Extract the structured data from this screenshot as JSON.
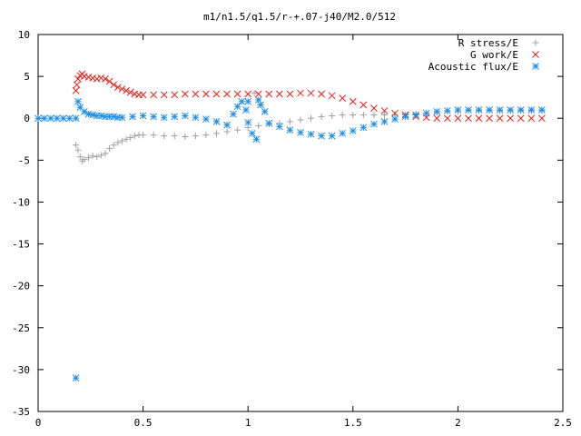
{
  "chart_data": {
    "type": "scatter",
    "title": "m1/n1.5/q1.5/r-+.07-j40/M2.0/512",
    "xlabel": "",
    "ylabel": "",
    "xlim": [
      0,
      2.5
    ],
    "ylim": [
      -35,
      10
    ],
    "x_ticks": [
      0,
      0.5,
      1,
      1.5,
      2,
      2.5
    ],
    "x_tick_labels": [
      "0",
      "0.5",
      "1",
      "1.5",
      "2",
      "2.5"
    ],
    "y_ticks": [
      10,
      5,
      0,
      -5,
      -10,
      -15,
      -20,
      -25,
      -30,
      -35
    ],
    "y_tick_labels": [
      "10",
      "5",
      "0",
      "-5",
      "-10",
      "-15",
      "-20",
      "-25",
      "-30",
      "-35"
    ],
    "grid": false,
    "legend_position": "top-right",
    "series": [
      {
        "name": "R stress/E",
        "marker": "plus",
        "color": "#a0a0a0",
        "points": [
          [
            0.18,
            -3.2
          ],
          [
            0.19,
            -3.8
          ],
          [
            0.2,
            -4.6
          ],
          [
            0.21,
            -5.1
          ],
          [
            0.22,
            -4.9
          ],
          [
            0.24,
            -4.7
          ],
          [
            0.26,
            -4.5
          ],
          [
            0.28,
            -4.6
          ],
          [
            0.3,
            -4.4
          ],
          [
            0.32,
            -4.2
          ],
          [
            0.34,
            -3.6
          ],
          [
            0.36,
            -3.2
          ],
          [
            0.38,
            -2.9
          ],
          [
            0.4,
            -2.7
          ],
          [
            0.42,
            -2.5
          ],
          [
            0.44,
            -2.3
          ],
          [
            0.46,
            -2.1
          ],
          [
            0.48,
            -2.0
          ],
          [
            0.5,
            -2.0
          ],
          [
            0.55,
            -2.0
          ],
          [
            0.6,
            -2.1
          ],
          [
            0.65,
            -2.1
          ],
          [
            0.7,
            -2.2
          ],
          [
            0.75,
            -2.1
          ],
          [
            0.8,
            -2.0
          ],
          [
            0.85,
            -1.8
          ],
          [
            0.9,
            -1.6
          ],
          [
            0.95,
            -1.4
          ],
          [
            1.0,
            -1.1
          ],
          [
            1.03,
            3.0
          ],
          [
            1.05,
            -0.9
          ],
          [
            1.1,
            -0.7
          ],
          [
            1.15,
            -0.6
          ],
          [
            1.2,
            -0.4
          ],
          [
            1.25,
            -0.2
          ],
          [
            1.3,
            0.0
          ],
          [
            1.35,
            0.2
          ],
          [
            1.4,
            0.3
          ],
          [
            1.45,
            0.4
          ],
          [
            1.5,
            0.4
          ],
          [
            1.55,
            0.4
          ],
          [
            1.6,
            0.4
          ],
          [
            1.65,
            0.4
          ],
          [
            1.7,
            0.4
          ],
          [
            1.75,
            0.4
          ],
          [
            1.8,
            0.5
          ],
          [
            1.85,
            0.6
          ],
          [
            1.9,
            0.7
          ],
          [
            1.95,
            0.8
          ],
          [
            2.0,
            0.8
          ],
          [
            2.05,
            0.9
          ],
          [
            2.1,
            0.9
          ],
          [
            2.15,
            0.9
          ],
          [
            2.2,
            0.9
          ],
          [
            2.25,
            0.9
          ],
          [
            2.3,
            0.9
          ],
          [
            2.35,
            0.9
          ],
          [
            2.4,
            0.9
          ]
        ]
      },
      {
        "name": "G work/E",
        "marker": "cross",
        "color": "#e8201a",
        "points": [
          [
            0.18,
            3.3
          ],
          [
            0.185,
            4.0
          ],
          [
            0.19,
            4.7
          ],
          [
            0.2,
            5.1
          ],
          [
            0.21,
            5.3
          ],
          [
            0.22,
            5.0
          ],
          [
            0.24,
            4.9
          ],
          [
            0.26,
            4.8
          ],
          [
            0.28,
            4.7
          ],
          [
            0.3,
            4.8
          ],
          [
            0.32,
            4.7
          ],
          [
            0.34,
            4.4
          ],
          [
            0.36,
            4.0
          ],
          [
            0.38,
            3.7
          ],
          [
            0.4,
            3.5
          ],
          [
            0.42,
            3.3
          ],
          [
            0.44,
            3.1
          ],
          [
            0.46,
            2.9
          ],
          [
            0.48,
            2.8
          ],
          [
            0.5,
            2.8
          ],
          [
            0.55,
            2.8
          ],
          [
            0.6,
            2.8
          ],
          [
            0.65,
            2.8
          ],
          [
            0.7,
            2.9
          ],
          [
            0.75,
            2.9
          ],
          [
            0.8,
            2.9
          ],
          [
            0.85,
            2.9
          ],
          [
            0.9,
            2.9
          ],
          [
            0.95,
            2.9
          ],
          [
            1.0,
            2.9
          ],
          [
            1.05,
            2.9
          ],
          [
            1.1,
            2.9
          ],
          [
            1.15,
            2.9
          ],
          [
            1.2,
            2.9
          ],
          [
            1.25,
            3.0
          ],
          [
            1.3,
            3.0
          ],
          [
            1.35,
            2.9
          ],
          [
            1.4,
            2.7
          ],
          [
            1.45,
            2.4
          ],
          [
            1.5,
            2.0
          ],
          [
            1.55,
            1.6
          ],
          [
            1.6,
            1.2
          ],
          [
            1.65,
            0.9
          ],
          [
            1.7,
            0.6
          ],
          [
            1.75,
            0.4
          ],
          [
            1.8,
            0.2
          ],
          [
            1.85,
            0.1
          ],
          [
            1.9,
            0.0
          ],
          [
            1.95,
            0.0
          ],
          [
            2.0,
            0.0
          ],
          [
            2.05,
            0.0
          ],
          [
            2.1,
            0.0
          ],
          [
            2.15,
            0.0
          ],
          [
            2.2,
            0.0
          ],
          [
            2.25,
            0.0
          ],
          [
            2.3,
            0.0
          ],
          [
            2.35,
            0.0
          ],
          [
            2.4,
            0.0
          ]
        ]
      },
      {
        "name": "Acoustic flux/E",
        "marker": "star",
        "color": "#1e8ee8",
        "points": [
          [
            0.0,
            0.0
          ],
          [
            0.03,
            0.0
          ],
          [
            0.06,
            0.0
          ],
          [
            0.09,
            0.0
          ],
          [
            0.12,
            0.0
          ],
          [
            0.15,
            0.0
          ],
          [
            0.18,
            0.0
          ],
          [
            0.18,
            -31.0
          ],
          [
            0.19,
            2.0
          ],
          [
            0.2,
            1.3
          ],
          [
            0.22,
            0.8
          ],
          [
            0.24,
            0.5
          ],
          [
            0.26,
            0.4
          ],
          [
            0.28,
            0.3
          ],
          [
            0.3,
            0.3
          ],
          [
            0.32,
            0.2
          ],
          [
            0.34,
            0.2
          ],
          [
            0.36,
            0.2
          ],
          [
            0.38,
            0.1
          ],
          [
            0.4,
            0.1
          ],
          [
            0.45,
            0.2
          ],
          [
            0.5,
            0.3
          ],
          [
            0.55,
            0.2
          ],
          [
            0.6,
            0.1
          ],
          [
            0.65,
            0.2
          ],
          [
            0.7,
            0.3
          ],
          [
            0.75,
            0.1
          ],
          [
            0.8,
            -0.1
          ],
          [
            0.85,
            -0.4
          ],
          [
            0.9,
            -0.8
          ],
          [
            0.93,
            0.5
          ],
          [
            0.95,
            1.4
          ],
          [
            0.97,
            2.0
          ],
          [
            0.99,
            1.0
          ],
          [
            1.0,
            -0.5
          ],
          [
            1.0,
            2.0
          ],
          [
            1.02,
            -1.8
          ],
          [
            1.04,
            -2.5
          ],
          [
            1.05,
            2.2
          ],
          [
            1.06,
            1.6
          ],
          [
            1.08,
            0.8
          ],
          [
            1.1,
            -0.6
          ],
          [
            1.15,
            -1.0
          ],
          [
            1.2,
            -1.4
          ],
          [
            1.25,
            -1.7
          ],
          [
            1.3,
            -1.9
          ],
          [
            1.35,
            -2.1
          ],
          [
            1.4,
            -2.1
          ],
          [
            1.45,
            -1.8
          ],
          [
            1.5,
            -1.5
          ],
          [
            1.55,
            -1.1
          ],
          [
            1.6,
            -0.7
          ],
          [
            1.65,
            -0.4
          ],
          [
            1.7,
            -0.1
          ],
          [
            1.75,
            0.2
          ],
          [
            1.8,
            0.4
          ],
          [
            1.85,
            0.6
          ],
          [
            1.9,
            0.8
          ],
          [
            1.95,
            0.9
          ],
          [
            2.0,
            1.0
          ],
          [
            2.05,
            1.0
          ],
          [
            2.1,
            1.0
          ],
          [
            2.15,
            1.0
          ],
          [
            2.2,
            1.0
          ],
          [
            2.25,
            1.0
          ],
          [
            2.3,
            1.0
          ],
          [
            2.35,
            1.0
          ],
          [
            2.4,
            1.0
          ]
        ]
      }
    ]
  }
}
